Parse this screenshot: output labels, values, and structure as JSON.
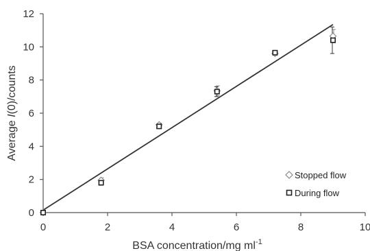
{
  "chart_data": {
    "type": "scatter",
    "title": "",
    "xlabel_main": "BSA concentration/mg ml",
    "xlabel_sup": "-1",
    "ylabel_pre": "Average ",
    "ylabel_italic": "I",
    "ylabel_post": "(0)/counts",
    "xlim": [
      0,
      10
    ],
    "ylim": [
      0,
      12
    ],
    "xticks": [
      0,
      2,
      4,
      6,
      8,
      10
    ],
    "yticks": [
      0,
      2,
      4,
      6,
      8,
      10,
      12
    ],
    "grid": false,
    "legend_position": "bottom-right",
    "series": [
      {
        "name": "Stopped flow",
        "marker": "diamond",
        "x": [
          0,
          1.8,
          3.6,
          5.4,
          7.2,
          9.0
        ],
        "y": [
          0.0,
          1.95,
          5.3,
          7.35,
          9.6,
          10.65
        ],
        "err": [
          0.05,
          0.15,
          0.1,
          0.3,
          0.1,
          0.4
        ]
      },
      {
        "name": "During flow",
        "marker": "square",
        "x": [
          0,
          1.8,
          3.6,
          5.4,
          7.2,
          9.0
        ],
        "y": [
          0.0,
          1.8,
          5.2,
          7.3,
          9.65,
          10.4
        ],
        "err": [
          0.05,
          0.15,
          0.1,
          0.3,
          0.1,
          0.8
        ]
      }
    ],
    "fit_line": {
      "x": [
        0,
        9.0
      ],
      "y": [
        0.15,
        11.35
      ]
    }
  }
}
